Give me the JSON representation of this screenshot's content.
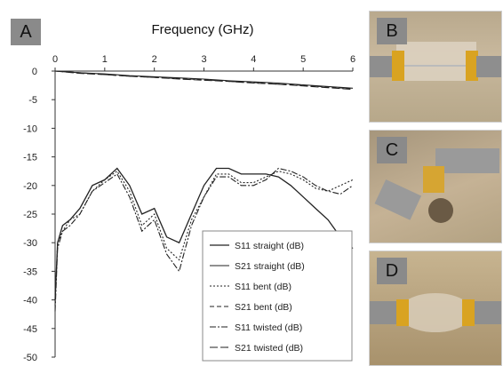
{
  "chart_data": {
    "type": "line",
    "panel_label": "A",
    "title": "Frequency (GHz)",
    "xlabel": "Frequency (GHz)",
    "ylabel": "",
    "xlim": [
      0,
      6
    ],
    "ylim": [
      -50,
      0
    ],
    "x_ticks": [
      "0",
      "1",
      "2",
      "3",
      "4",
      "5",
      "6"
    ],
    "y_ticks": [
      "0",
      "-5",
      "-10",
      "-15",
      "-20",
      "-25",
      "-30",
      "-35",
      "-40",
      "-45",
      "-50"
    ],
    "x_axis_position": "top",
    "grid": false,
    "legend_position": "bottom-right",
    "series": [
      {
        "name": "S11  straight (dB)",
        "style": "solid",
        "x": [
          0.0,
          0.05,
          0.15,
          0.3,
          0.5,
          0.75,
          1.0,
          1.25,
          1.5,
          1.75,
          2.0,
          2.25,
          2.5,
          2.75,
          3.0,
          3.25,
          3.5,
          3.75,
          4.0,
          4.25,
          4.5,
          4.75,
          5.0,
          5.25,
          5.5,
          5.75,
          6.0
        ],
        "y": [
          -40,
          -30,
          -27,
          -26,
          -24,
          -20,
          -19,
          -17,
          -20,
          -25,
          -24,
          -29,
          -30,
          -25,
          -20,
          -17,
          -17,
          -18,
          -18,
          -18,
          -18.5,
          -20,
          -22,
          -24,
          -26,
          -29,
          -31
        ]
      },
      {
        "name": "S21  straight (dB)",
        "style": "solid-thin",
        "x": [
          0,
          0.5,
          1.0,
          1.5,
          2.0,
          2.5,
          3.0,
          3.5,
          4.0,
          4.5,
          5.0,
          5.5,
          6.0
        ],
        "y": [
          0,
          -0.3,
          -0.5,
          -0.8,
          -1.0,
          -1.2,
          -1.4,
          -1.7,
          -1.9,
          -2.1,
          -2.4,
          -2.7,
          -3.0
        ]
      },
      {
        "name": "S11 bent (dB)",
        "style": "dotted",
        "x": [
          0.0,
          0.05,
          0.15,
          0.3,
          0.5,
          0.75,
          1.0,
          1.25,
          1.5,
          1.75,
          2.0,
          2.25,
          2.5,
          2.75,
          3.0,
          3.25,
          3.5,
          3.75,
          4.0,
          4.25,
          4.5,
          4.75,
          5.0,
          5.25,
          5.5,
          5.75,
          6.0
        ],
        "y": [
          -41,
          -30,
          -28,
          -26,
          -25,
          -21,
          -19,
          -17.5,
          -21,
          -27,
          -25,
          -31,
          -33,
          -26,
          -22,
          -18,
          -18,
          -19.5,
          -19.5,
          -18.5,
          -17.5,
          -18,
          -19,
          -20.5,
          -21,
          -20,
          -19
        ]
      },
      {
        "name": "S21 bent (dB)",
        "style": "dashed",
        "x": [
          0,
          0.5,
          1.0,
          1.5,
          2.0,
          2.5,
          3.0,
          3.5,
          4.0,
          4.5,
          5.0,
          5.5,
          6.0
        ],
        "y": [
          0,
          -0.3,
          -0.6,
          -0.9,
          -1.1,
          -1.3,
          -1.5,
          -1.8,
          -2.0,
          -2.3,
          -2.5,
          -2.8,
          -3.1
        ]
      },
      {
        "name": "S11 twisted (dB)",
        "style": "dashdot",
        "x": [
          0.0,
          0.05,
          0.15,
          0.3,
          0.5,
          0.75,
          1.0,
          1.25,
          1.5,
          1.75,
          2.0,
          2.25,
          2.5,
          2.75,
          3.0,
          3.25,
          3.5,
          3.75,
          4.0,
          4.25,
          4.5,
          4.75,
          5.0,
          5.25,
          5.5,
          5.75,
          6.0
        ],
        "y": [
          -42,
          -31,
          -28,
          -27,
          -25,
          -21,
          -19.5,
          -18,
          -22,
          -28,
          -26,
          -32,
          -35,
          -27,
          -22,
          -18.5,
          -18.5,
          -20,
          -20,
          -19,
          -17,
          -17.5,
          -18.5,
          -20,
          -21,
          -21.5,
          -20
        ]
      },
      {
        "name": "S21 twisted (dB)",
        "style": "longdash",
        "x": [
          0,
          0.5,
          1.0,
          1.5,
          2.0,
          2.5,
          3.0,
          3.5,
          4.0,
          4.5,
          5.0,
          5.5,
          6.0
        ],
        "y": [
          0,
          -0.4,
          -0.6,
          -0.9,
          -1.1,
          -1.4,
          -1.6,
          -1.8,
          -2.1,
          -2.3,
          -2.6,
          -2.9,
          -3.2
        ]
      }
    ]
  },
  "photos": [
    {
      "label": "B"
    },
    {
      "label": "C"
    },
    {
      "label": "D"
    }
  ],
  "colors": {
    "line": "#222222",
    "panel_label_bg": "#8a8a8a",
    "photo_bg": "#c9b79a"
  }
}
